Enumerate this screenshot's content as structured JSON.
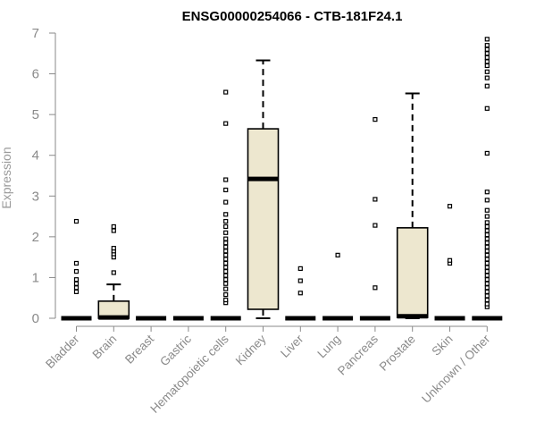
{
  "chart_data": {
    "type": "box",
    "title": "ENSG00000254066 - CTB-181F24.1",
    "xlabel": "",
    "ylabel": "Expression",
    "ylim": [
      0,
      7
    ],
    "yticks": [
      0,
      1,
      2,
      3,
      4,
      5,
      6,
      7
    ],
    "categories": [
      "Bladder",
      "Brain",
      "Breast",
      "Gastric",
      "Hematopoietic cells",
      "Kidney",
      "Liver",
      "Lung",
      "Pancreas",
      "Prostate",
      "Skin",
      "Unknown / Other"
    ],
    "boxes": [
      {
        "min": 0,
        "q1": 0,
        "median": 0,
        "q3": 0,
        "max": 0,
        "outliers": [
          0.65,
          0.75,
          0.85,
          0.95,
          1.15,
          1.35,
          2.38
        ]
      },
      {
        "min": 0,
        "q1": 0,
        "median": 0.02,
        "q3": 0.42,
        "max": 0.83,
        "outliers": [
          1.12,
          1.5,
          1.58,
          1.65,
          1.72,
          2.15,
          2.25
        ]
      },
      {
        "min": 0,
        "q1": 0,
        "median": 0,
        "q3": 0,
        "max": 0,
        "outliers": []
      },
      {
        "min": 0,
        "q1": 0,
        "median": 0,
        "q3": 0,
        "max": 0,
        "outliers": []
      },
      {
        "min": 0,
        "q1": 0,
        "median": 0,
        "q3": 0,
        "max": 0,
        "outliers": [
          0.38,
          0.45,
          0.58,
          0.72,
          0.85,
          0.95,
          1.05,
          1.15,
          1.25,
          1.35,
          1.45,
          1.55,
          1.65,
          1.75,
          1.85,
          1.95,
          2.1,
          2.25,
          2.38,
          2.55,
          2.85,
          3.15,
          3.4,
          4.78,
          5.55
        ]
      },
      {
        "min": 0,
        "q1": 0.22,
        "median": 3.42,
        "q3": 4.65,
        "max": 6.33,
        "outliers": []
      },
      {
        "min": 0,
        "q1": 0,
        "median": 0,
        "q3": 0,
        "max": 0,
        "outliers": [
          0.62,
          0.92,
          1.22
        ]
      },
      {
        "min": 0,
        "q1": 0,
        "median": 0,
        "q3": 0,
        "max": 0,
        "outliers": [
          1.55
        ]
      },
      {
        "min": 0,
        "q1": 0,
        "median": 0,
        "q3": 0,
        "max": 0,
        "outliers": [
          0.75,
          2.28,
          2.92,
          4.88
        ]
      },
      {
        "min": 0,
        "q1": 0.02,
        "median": 0.05,
        "q3": 2.22,
        "max": 5.52,
        "outliers": []
      },
      {
        "min": 0,
        "q1": 0,
        "median": 0,
        "q3": 0,
        "max": 0,
        "outliers": [
          1.35,
          1.42,
          2.75
        ]
      },
      {
        "min": 0,
        "q1": 0,
        "median": 0,
        "q3": 0,
        "max": 0,
        "outliers": [
          0.28,
          0.35,
          0.45,
          0.55,
          0.65,
          0.75,
          0.85,
          0.95,
          1.05,
          1.15,
          1.25,
          1.35,
          1.45,
          1.55,
          1.65,
          1.75,
          1.85,
          1.95,
          2.05,
          2.15,
          2.25,
          2.35,
          2.5,
          2.65,
          2.9,
          3.1,
          4.05,
          5.15,
          5.7,
          5.9,
          6.05,
          6.2,
          6.3,
          6.4,
          6.5,
          6.6,
          6.7,
          6.85
        ]
      }
    ],
    "colors": {
      "box_fill": "#ede7cf",
      "box_stroke": "#000000",
      "axis": "#8a8a8a",
      "text": "#8a8a8a",
      "title": "#000000"
    },
    "grid": false,
    "legend": "none"
  }
}
